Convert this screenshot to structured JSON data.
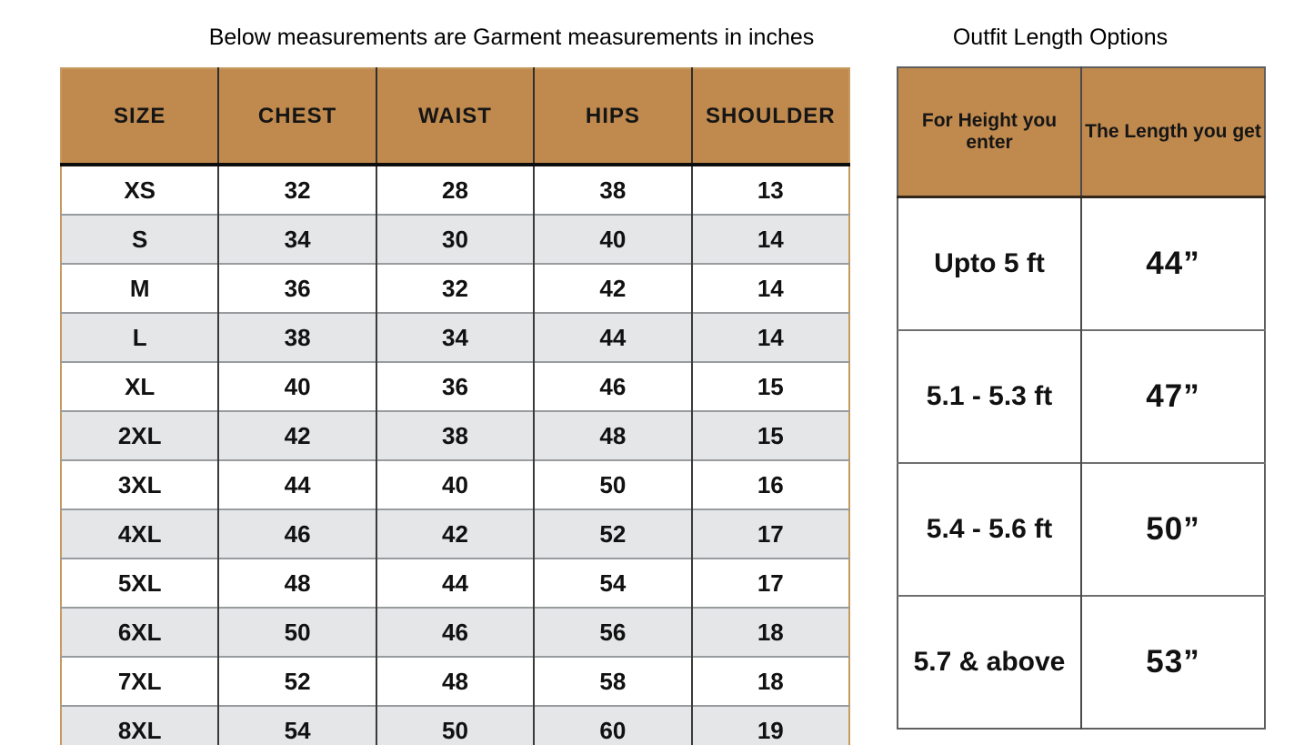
{
  "left_section": {
    "title": "Below measurements are Garment measurements in inches"
  },
  "right_section": {
    "title": "Outfit Length Options"
  },
  "chart_data": [
    {
      "type": "table",
      "title": "Below measurements are Garment measurements in inches",
      "columns": [
        "SIZE",
        "CHEST",
        "WAIST",
        "HIPS",
        "SHOULDER"
      ],
      "rows": [
        [
          "XS",
          "32",
          "28",
          "38",
          "13"
        ],
        [
          "S",
          "34",
          "30",
          "40",
          "14"
        ],
        [
          "M",
          "36",
          "32",
          "42",
          "14"
        ],
        [
          "L",
          "38",
          "34",
          "44",
          "14"
        ],
        [
          "XL",
          "40",
          "36",
          "46",
          "15"
        ],
        [
          "2XL",
          "42",
          "38",
          "48",
          "15"
        ],
        [
          "3XL",
          "44",
          "40",
          "50",
          "16"
        ],
        [
          "4XL",
          "46",
          "42",
          "52",
          "17"
        ],
        [
          "5XL",
          "48",
          "44",
          "54",
          "17"
        ],
        [
          "6XL",
          "50",
          "46",
          "56",
          "18"
        ],
        [
          "7XL",
          "52",
          "48",
          "58",
          "18"
        ],
        [
          "8XL",
          "54",
          "50",
          "60",
          "19"
        ]
      ],
      "units": "inches",
      "layout_hints": {
        "striped_rows": true,
        "header_position": "top"
      }
    },
    {
      "type": "table",
      "title": "Outfit Length Options",
      "columns": [
        "For Height you enter",
        "The Length you get"
      ],
      "rows": [
        [
          "Upto 5 ft",
          "44”"
        ],
        [
          "5.1 - 5.3 ft",
          "47”"
        ],
        [
          "5.4 - 5.6 ft",
          "50”"
        ],
        [
          "5.7 & above",
          "53”"
        ]
      ],
      "layout_hints": {
        "striped_rows": false,
        "header_position": "top"
      }
    }
  ],
  "colors": {
    "header_bg": "#c08a4e",
    "alt_row_bg": "#e4e6e8",
    "row_bg": "#ffffff",
    "text": "#111111",
    "left_table_outer_border": "#c69a60",
    "right_table_outer_border": "#5f5f5f",
    "header_underline": "#0d0d0d"
  }
}
